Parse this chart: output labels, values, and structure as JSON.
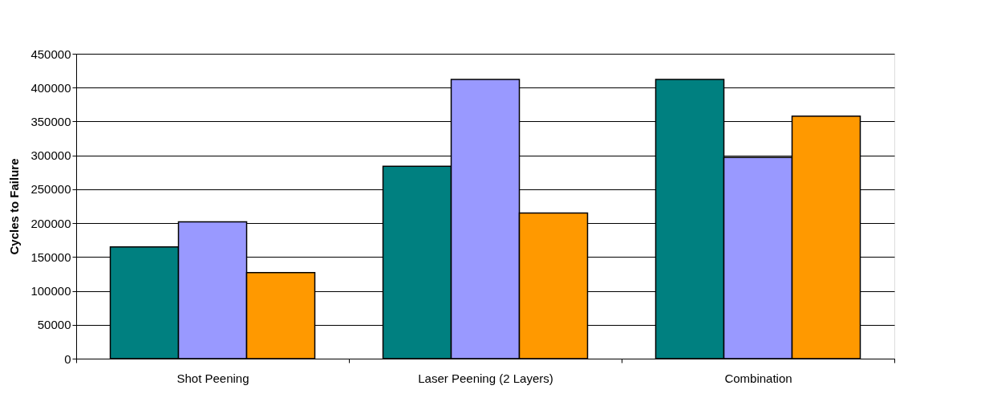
{
  "chart_data": {
    "type": "bar",
    "ylabel": "Cycles to Failure",
    "categories": [
      "Shot Peening",
      "Laser Peening (2 Layers)",
      "Combination"
    ],
    "series": [
      {
        "color": "#008080",
        "values": [
          165000,
          284000,
          412000
        ]
      },
      {
        "color": "#9999ff",
        "values": [
          202000,
          412000,
          297000
        ]
      },
      {
        "color": "#ff9900",
        "values": [
          127000,
          215000,
          358000
        ]
      }
    ],
    "ylim": [
      0,
      450000
    ],
    "yticks": [
      0,
      50000,
      100000,
      150000,
      200000,
      250000,
      300000,
      350000,
      400000,
      450000
    ],
    "grid": "y",
    "legend": false
  }
}
